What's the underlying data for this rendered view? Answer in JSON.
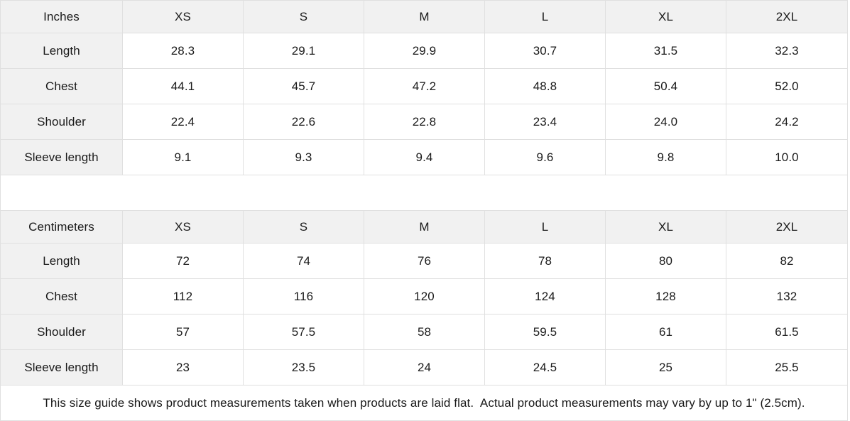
{
  "size_guide": {
    "sections": [
      {
        "unit_label": "Inches",
        "sizes": [
          "XS",
          "S",
          "M",
          "L",
          "XL",
          "2XL"
        ],
        "rows": [
          {
            "label": "Length",
            "values": [
              "28.3",
              "29.1",
              "29.9",
              "30.7",
              "31.5",
              "32.3"
            ]
          },
          {
            "label": "Chest",
            "values": [
              "44.1",
              "45.7",
              "47.2",
              "48.8",
              "50.4",
              "52.0"
            ]
          },
          {
            "label": "Shoulder",
            "values": [
              "22.4",
              "22.6",
              "22.8",
              "23.4",
              "24.0",
              "24.2"
            ]
          },
          {
            "label": "Sleeve length",
            "values": [
              "9.1",
              "9.3",
              "9.4",
              "9.6",
              "9.8",
              "10.0"
            ]
          }
        ]
      },
      {
        "unit_label": "Centimeters",
        "sizes": [
          "XS",
          "S",
          "M",
          "L",
          "XL",
          "2XL"
        ],
        "rows": [
          {
            "label": "Length",
            "values": [
              "72",
              "74",
              "76",
              "78",
              "80",
              "82"
            ]
          },
          {
            "label": "Chest",
            "values": [
              "112",
              "116",
              "120",
              "124",
              "128",
              "132"
            ]
          },
          {
            "label": "Shoulder",
            "values": [
              "57",
              "57.5",
              "58",
              "59.5",
              "61",
              "61.5"
            ]
          },
          {
            "label": "Sleeve length",
            "values": [
              "23",
              "23.5",
              "24",
              "24.5",
              "25",
              "25.5"
            ]
          }
        ]
      }
    ],
    "note": "This size guide shows product measurements taken when products are laid flat.  Actual product measurements may vary by up to 1\" (2.5cm).",
    "colors": {
      "header_bg": "#f1f1f1",
      "cell_bg": "#ffffff",
      "border": "#e0e0e0",
      "text": "#1a1a1a"
    }
  }
}
